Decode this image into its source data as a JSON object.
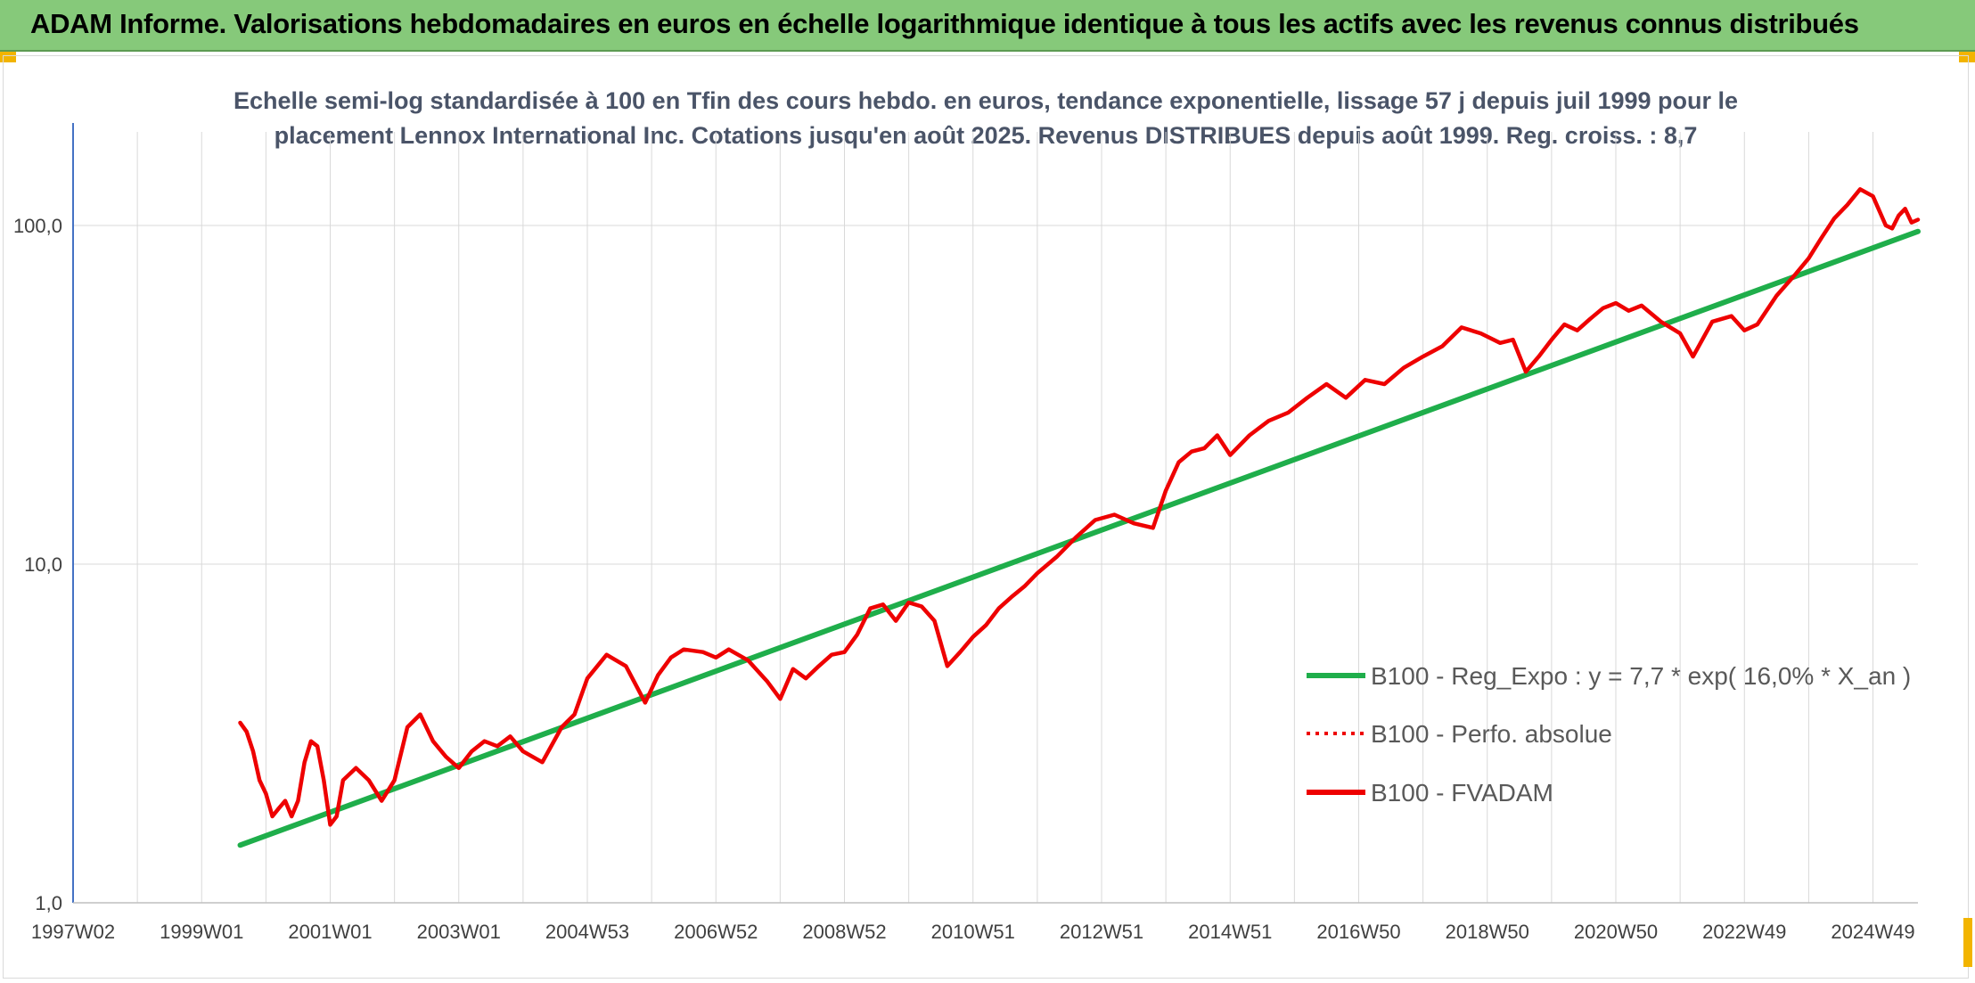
{
  "banner": {
    "title": "ADAM Informe. Valorisations hebdomadaires en euros en échelle logarithmique identique à tous les actifs avec les revenus connus distribués"
  },
  "colors": {
    "banner_bg": "#86c97a",
    "trend": "#1fae4b",
    "fvadam": "#ee0000",
    "perfo": "#ee0000",
    "grid": "#d9d9d9",
    "axis": "#4472c4"
  },
  "chart_data": {
    "type": "line",
    "title_lines": [
      "Echelle semi-log standardisée à 100 en Tfin des cours hebdo. en euros, tendance exponentielle, lissage 57 j depuis juil 1999 pour le",
      "placement Lennox International Inc. Cotations jusqu'en août 2025. Revenus DISTRIBUES depuis août 1999. Reg. croiss. : 8,7"
    ],
    "y_scale": "log",
    "ylim": [
      1,
      200
    ],
    "y_ticks": [
      1,
      10,
      100
    ],
    "y_tick_labels": [
      "1,0",
      "10,0",
      "100,0"
    ],
    "x_range": [
      1997.0,
      2025.7
    ],
    "x_ticks": [
      1997.0,
      1999.0,
      2001.0,
      2003.0,
      2005.0,
      2007.0,
      2009.0,
      2011.0,
      2013.0,
      2015.0,
      2017.0,
      2019.0,
      2021.0,
      2023.0,
      2025.0
    ],
    "x_tick_labels": [
      "1997W02",
      "1999W01",
      "2001W01",
      "2003W01",
      "2004W53",
      "2006W52",
      "2008W52",
      "2010W51",
      "2012W51",
      "2014W51",
      "2016W50",
      "2018W50",
      "2020W50",
      "2022W49",
      "2024W49"
    ],
    "grid": "vertical and horizontal",
    "legend_position": "right",
    "series": [
      {
        "name": "B100 - Reg_Expo : y = 7,7 * exp( 16,0% *  X_an )",
        "style": "solid",
        "x": [
          1999.6,
          2025.7
        ],
        "y": [
          1.48,
          96
        ]
      },
      {
        "name": "B100 - Perfo. absolue",
        "style": "dotted",
        "x": [],
        "y": []
      },
      {
        "name": "B100 - FVADAM",
        "style": "solid",
        "x": [
          1999.6,
          1999.7,
          1999.8,
          1999.9,
          2000.0,
          2000.1,
          2000.2,
          2000.3,
          2000.4,
          2000.5,
          2000.6,
          2000.7,
          2000.8,
          2000.9,
          2001.0,
          2001.1,
          2001.2,
          2001.4,
          2001.6,
          2001.8,
          2002.0,
          2002.2,
          2002.4,
          2002.6,
          2002.8,
          2003.0,
          2003.2,
          2003.4,
          2003.6,
          2003.8,
          2004.0,
          2004.3,
          2004.6,
          2004.8,
          2005.0,
          2005.3,
          2005.6,
          2005.9,
          2006.1,
          2006.3,
          2006.5,
          2006.8,
          2007.0,
          2007.2,
          2007.5,
          2007.8,
          2008.0,
          2008.2,
          2008.4,
          2008.6,
          2008.8,
          2009.0,
          2009.2,
          2009.4,
          2009.6,
          2009.8,
          2010.0,
          2010.2,
          2010.4,
          2010.6,
          2010.8,
          2011.0,
          2011.2,
          2011.4,
          2011.6,
          2011.8,
          2012.0,
          2012.3,
          2012.6,
          2012.9,
          2013.2,
          2013.5,
          2013.8,
          2014.0,
          2014.2,
          2014.4,
          2014.6,
          2014.8,
          2015.0,
          2015.3,
          2015.6,
          2015.9,
          2016.2,
          2016.5,
          2016.8,
          2017.1,
          2017.4,
          2017.7,
          2018.0,
          2018.3,
          2018.6,
          2018.9,
          2019.2,
          2019.4,
          2019.6,
          2019.8,
          2020.0,
          2020.2,
          2020.4,
          2020.6,
          2020.8,
          2021.0,
          2021.2,
          2021.4,
          2021.7,
          2022.0,
          2022.2,
          2022.5,
          2022.8,
          2023.0,
          2023.2,
          2023.5,
          2023.8,
          2024.0,
          2024.2,
          2024.4,
          2024.6,
          2024.8,
          2025.0,
          2025.2,
          2025.3,
          2025.4,
          2025.5,
          2025.6,
          2025.7
        ],
        "y": [
          3.4,
          3.2,
          2.8,
          2.3,
          2.1,
          1.8,
          1.9,
          2.0,
          1.8,
          2.0,
          2.6,
          3.0,
          2.9,
          2.3,
          1.7,
          1.8,
          2.3,
          2.5,
          2.3,
          2.0,
          2.3,
          3.3,
          3.6,
          3.0,
          2.7,
          2.5,
          2.8,
          3.0,
          2.9,
          3.1,
          2.8,
          2.6,
          3.3,
          3.6,
          4.6,
          5.4,
          5.0,
          3.9,
          4.7,
          5.3,
          5.6,
          5.5,
          5.3,
          5.6,
          5.2,
          4.5,
          4.0,
          4.9,
          4.6,
          5.0,
          5.4,
          5.5,
          6.2,
          7.4,
          7.6,
          6.8,
          7.7,
          7.5,
          6.8,
          5.0,
          5.5,
          6.1,
          6.6,
          7.4,
          8.0,
          8.6,
          9.4,
          10.5,
          12.0,
          13.5,
          14.0,
          13.2,
          12.8,
          16.5,
          20.0,
          21.5,
          22.0,
          24.0,
          21.0,
          24.0,
          26.5,
          28.0,
          31.0,
          34.0,
          31.0,
          35.0,
          34.0,
          38.0,
          41.0,
          44.0,
          50.0,
          48.0,
          45.0,
          46.0,
          37.0,
          41.0,
          46.0,
          51.0,
          49.0,
          53.0,
          57.0,
          59.0,
          56.0,
          58.0,
          52.0,
          48.0,
          41.0,
          52.0,
          54.0,
          49.0,
          51.0,
          62.0,
          72.0,
          80.0,
          92.0,
          105.0,
          115.0,
          128.0,
          122.0,
          100.0,
          98.0,
          107.0,
          112.0,
          102.0,
          104.0
        ]
      }
    ]
  }
}
